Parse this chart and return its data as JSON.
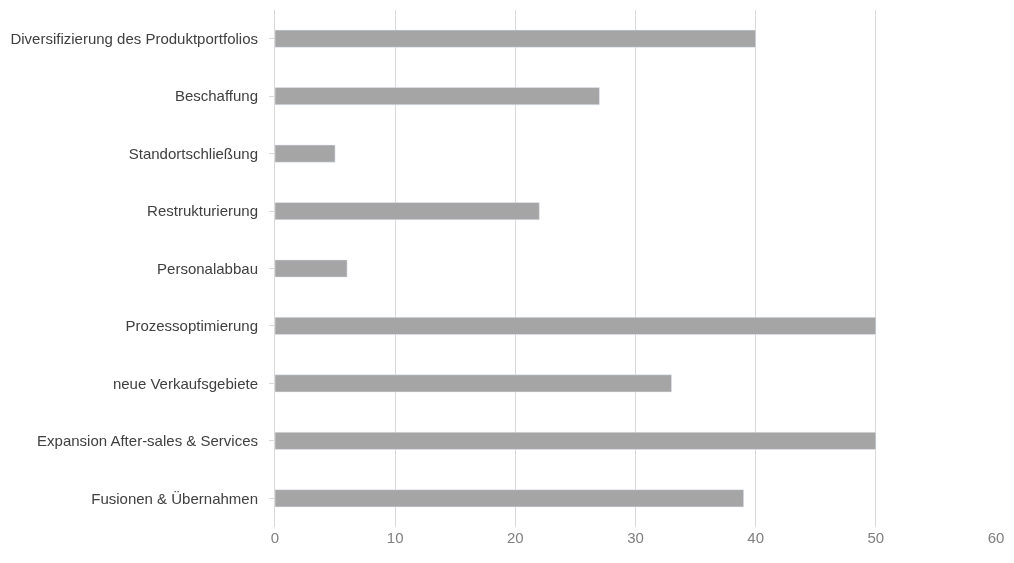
{
  "chart_data": {
    "type": "bar",
    "orientation": "horizontal",
    "categories": [
      "Diversifizierung des Produktportfolios",
      "Beschaffung",
      "Standortschließung",
      "Restrukturierung",
      "Personalabbau",
      "Prozessoptimierung",
      "neue Verkaufsgebiete",
      "Expansion After-sales & Services",
      "Fusionen & Übernahmen"
    ],
    "values": [
      40,
      27,
      5,
      22,
      6,
      50,
      33,
      50,
      39
    ],
    "color": "#a5a5a5",
    "xlim": [
      0,
      60
    ],
    "xticks": [
      0,
      10,
      20,
      30,
      40,
      50,
      60
    ],
    "grid": "x"
  }
}
